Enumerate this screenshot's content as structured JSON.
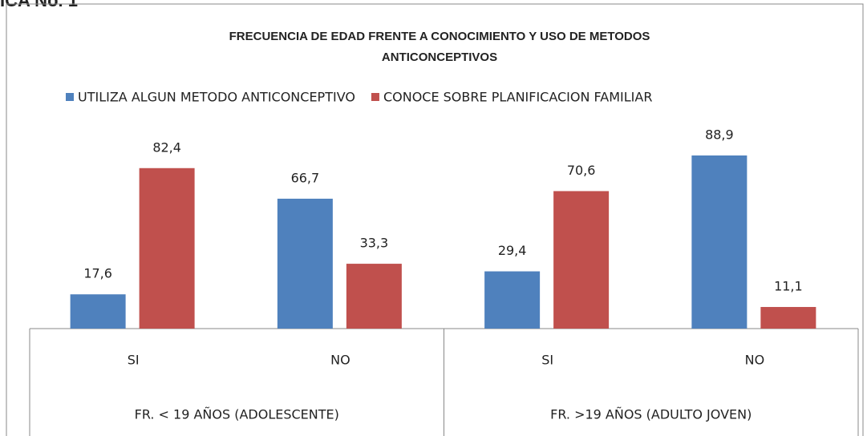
{
  "caption": "ICA No. 1",
  "chart_data": {
    "type": "bar",
    "title": [
      "FRECUENCIA DE EDAD FRENTE A  CONOCIMIENTO Y USO DE METODOS",
      "ANTICONCEPTIVOS"
    ],
    "categories": [
      "SI",
      "NO",
      "SI",
      "NO"
    ],
    "groups": [
      "FR. < 19 AÑOS (ADOLESCENTE)",
      "FR. >19 AÑOS (ADULTO JOVEN)"
    ],
    "series": [
      {
        "name": "UTILIZA ALGUN METODO ANTICONCEPTIVO",
        "color": "#4f81bd",
        "values": [
          17.6,
          66.7,
          29.4,
          88.9
        ],
        "value_labels": [
          "17,6",
          "66,7",
          "29,4",
          "88,9"
        ]
      },
      {
        "name": "CONOCE SOBRE PLANIFICACION FAMILIAR",
        "color": "#c0504d",
        "values": [
          82.4,
          33.3,
          70.6,
          11.1
        ],
        "value_labels": [
          "82,4",
          "33,3",
          "70,6",
          "11,1"
        ]
      }
    ],
    "ylim": [
      0,
      100
    ]
  }
}
